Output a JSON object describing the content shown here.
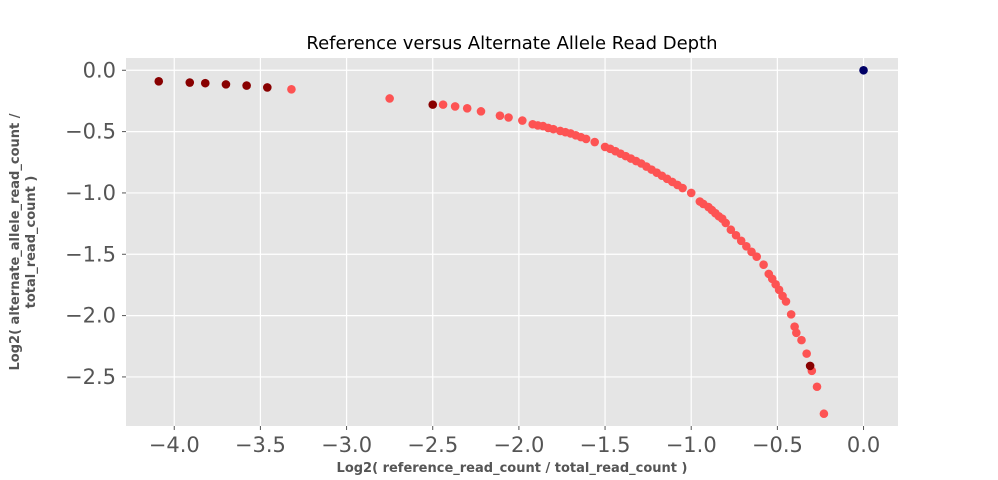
{
  "chart_data": {
    "type": "scatter",
    "title": "Reference versus Alternate Allele Read Depth",
    "xlabel": "Log2( reference_read_count / total_read_count )",
    "ylabel_lines": [
      "Log2( alternate_allele_read_count /",
      "total_read_count )"
    ],
    "xlim": [
      -4.28,
      0.2
    ],
    "ylim": [
      -2.9,
      0.1
    ],
    "x_ticks": [
      -4.0,
      -3.5,
      -3.0,
      -2.5,
      -2.0,
      -1.5,
      -1.0,
      -0.5,
      0.0
    ],
    "x_tick_labels": [
      "−4.0",
      "−3.5",
      "−3.0",
      "−2.5",
      "−2.0",
      "−1.5",
      "−1.0",
      "−0.5",
      "0.0"
    ],
    "y_ticks": [
      0.0,
      -0.5,
      -1.0,
      -1.5,
      -2.0,
      -2.5
    ],
    "y_tick_labels": [
      "0.0",
      "−0.5",
      "−1.0",
      "−1.5",
      "−2.0",
      "−2.5"
    ],
    "grid": true,
    "background_color": "#e5e5e5",
    "series": [
      {
        "color": "#fd5353",
        "points": [
          [
            -3.32,
            -0.155
          ],
          [
            -2.75,
            -0.23
          ],
          [
            -2.44,
            -0.28
          ],
          [
            -2.37,
            -0.295
          ],
          [
            -2.3,
            -0.31
          ],
          [
            -2.22,
            -0.335
          ],
          [
            -2.11,
            -0.37
          ],
          [
            -2.06,
            -0.385
          ],
          [
            -1.98,
            -0.41
          ],
          [
            -1.92,
            -0.44
          ],
          [
            -1.89,
            -0.45
          ],
          [
            -1.86,
            -0.455
          ],
          [
            -1.83,
            -0.47
          ],
          [
            -1.8,
            -0.48
          ],
          [
            -1.76,
            -0.495
          ],
          [
            -1.73,
            -0.505
          ],
          [
            -1.7,
            -0.515
          ],
          [
            -1.67,
            -0.53
          ],
          [
            -1.64,
            -0.545
          ],
          [
            -1.61,
            -0.56
          ],
          [
            -1.56,
            -0.585
          ],
          [
            -1.5,
            -0.625
          ],
          [
            -1.47,
            -0.64
          ],
          [
            -1.44,
            -0.66
          ],
          [
            -1.41,
            -0.68
          ],
          [
            -1.38,
            -0.7
          ],
          [
            -1.35,
            -0.72
          ],
          [
            -1.32,
            -0.74
          ],
          [
            -1.29,
            -0.76
          ],
          [
            -1.26,
            -0.785
          ],
          [
            -1.23,
            -0.81
          ],
          [
            -1.2,
            -0.835
          ],
          [
            -1.17,
            -0.86
          ],
          [
            -1.14,
            -0.885
          ],
          [
            -1.11,
            -0.91
          ],
          [
            -1.08,
            -0.935
          ],
          [
            -1.05,
            -0.96
          ],
          [
            -1.0,
            -1.0
          ],
          [
            -0.95,
            -1.07
          ],
          [
            -0.93,
            -1.09
          ],
          [
            -0.9,
            -1.115
          ],
          [
            -0.88,
            -1.14
          ],
          [
            -0.86,
            -1.165
          ],
          [
            -0.84,
            -1.19
          ],
          [
            -0.82,
            -1.21
          ],
          [
            -0.8,
            -1.245
          ],
          [
            -0.77,
            -1.3
          ],
          [
            -0.74,
            -1.345
          ],
          [
            -0.71,
            -1.39
          ],
          [
            -0.68,
            -1.435
          ],
          [
            -0.65,
            -1.48
          ],
          [
            -0.62,
            -1.52
          ],
          [
            -0.58,
            -1.585
          ],
          [
            -0.55,
            -1.66
          ],
          [
            -0.53,
            -1.7
          ],
          [
            -0.51,
            -1.745
          ],
          [
            -0.49,
            -1.79
          ],
          [
            -0.47,
            -1.84
          ],
          [
            -0.45,
            -1.885
          ],
          [
            -0.42,
            -1.99
          ],
          [
            -0.4,
            -2.09
          ],
          [
            -0.39,
            -2.14
          ],
          [
            -0.36,
            -2.2
          ],
          [
            -0.33,
            -2.31
          ],
          [
            -0.3,
            -2.45
          ],
          [
            -0.27,
            -2.58
          ],
          [
            -0.23,
            -2.8
          ]
        ]
      },
      {
        "color": "#880000",
        "points": [
          [
            -4.09,
            -0.09
          ],
          [
            -3.91,
            -0.1
          ],
          [
            -3.82,
            -0.105
          ],
          [
            -3.7,
            -0.115
          ],
          [
            -3.58,
            -0.125
          ],
          [
            -3.46,
            -0.14
          ],
          [
            -2.5,
            -0.28
          ],
          [
            -0.31,
            -2.41
          ]
        ]
      },
      {
        "color": "#000066",
        "points": [
          [
            0.0,
            0.0
          ]
        ]
      }
    ]
  }
}
